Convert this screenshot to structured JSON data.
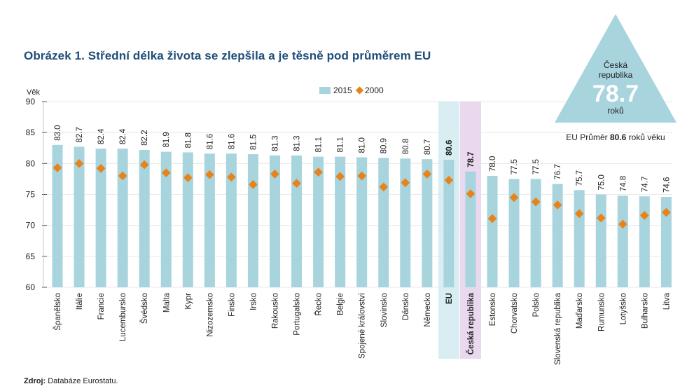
{
  "title": "Obrázek 1. Střední délka života se zlepšila a je těsně pod průměrem EU",
  "source_label": "Zdroj:",
  "source_text": "Databáze Eurostatu.",
  "callout": {
    "country_line1": "Česká",
    "country_line2": "republika",
    "value": "78.7",
    "unit": "roků",
    "eu_prefix": "EU Průměr",
    "eu_value": "80.6",
    "eu_suffix": "roků věku"
  },
  "colors": {
    "bar": "#a8d4de",
    "marker": "#e8831b",
    "eu_highlight": "#d8eef3",
    "cz_highlight": "#e9d8ee",
    "triangle": "#a8d4de",
    "title": "#1f4e79"
  },
  "chart_data": {
    "type": "bar",
    "ylabel": "Věk",
    "ylim": [
      60,
      90
    ],
    "yticks": [
      60,
      65,
      70,
      75,
      80,
      85,
      90
    ],
    "legend": [
      "2015",
      "2000"
    ],
    "legend_position": "top-center",
    "categories": [
      "Španělsko",
      "Itálie",
      "Francie",
      "Lucembursko",
      "Švédsko",
      "Malta",
      "Kypr",
      "Nizozemsko",
      "Finsko",
      "Irsko",
      "Rakousko",
      "Portugalsko",
      "Řecko",
      "Belgie",
      "Spojené království",
      "Slovinsko",
      "Dánsko",
      "Německo",
      "EU",
      "Česká republika",
      "Estonsko",
      "Chorvatsko",
      "Polsko",
      "Slovenská republika",
      "Maďarsko",
      "Rumunsko",
      "Lotyšsko",
      "Bulharsko",
      "Litva"
    ],
    "series": [
      {
        "name": "2015",
        "type": "bar",
        "values": [
          83.0,
          82.7,
          82.4,
          82.4,
          82.2,
          81.9,
          81.8,
          81.6,
          81.6,
          81.5,
          81.3,
          81.3,
          81.1,
          81.1,
          81.0,
          80.9,
          80.8,
          80.7,
          80.6,
          78.7,
          78.0,
          77.5,
          77.5,
          76.7,
          75.7,
          75.0,
          74.8,
          74.7,
          74.6
        ],
        "labels": [
          "83.0",
          "82.7",
          "82.4",
          "82.4",
          "82.2",
          "81.9",
          "81.8",
          "81.6",
          "81.6",
          "81.5",
          "81.3",
          "81.3",
          "81.1",
          "81.1",
          "81.0",
          "80.9",
          "80.8",
          "80.7",
          "80.6",
          "78.7",
          "78.0",
          "77.5",
          "77.5",
          "76.7",
          "75.7",
          "75.0",
          "74.8",
          "74.7",
          "74.6"
        ]
      },
      {
        "name": "2000",
        "type": "marker",
        "values": [
          79.3,
          80.0,
          79.2,
          78.0,
          79.8,
          78.5,
          77.7,
          78.2,
          77.8,
          76.6,
          78.3,
          76.8,
          78.6,
          77.9,
          78.0,
          76.2,
          76.9,
          78.3,
          77.3,
          75.1,
          71.1,
          74.5,
          73.8,
          73.3,
          71.9,
          71.2,
          70.2,
          71.6,
          72.1
        ]
      }
    ],
    "bold_categories": [
      "EU",
      "Česká republika"
    ]
  }
}
